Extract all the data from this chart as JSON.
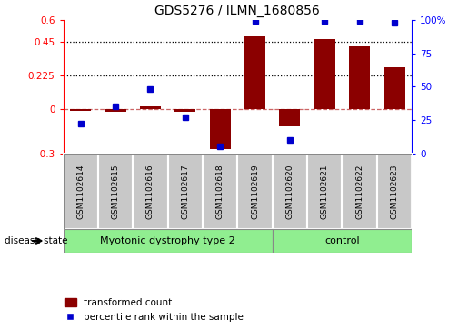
{
  "title": "GDS5276 / ILMN_1680856",
  "samples": [
    "GSM1102614",
    "GSM1102615",
    "GSM1102616",
    "GSM1102617",
    "GSM1102618",
    "GSM1102619",
    "GSM1102620",
    "GSM1102621",
    "GSM1102622",
    "GSM1102623"
  ],
  "red_values": [
    -0.012,
    -0.02,
    0.02,
    -0.02,
    -0.27,
    0.49,
    -0.12,
    0.47,
    0.42,
    0.28
  ],
  "blue_values": [
    22,
    35,
    48,
    27,
    5,
    99,
    10,
    99,
    99,
    98
  ],
  "ylim_left": [
    -0.3,
    0.6
  ],
  "ylim_right": [
    0,
    100
  ],
  "yticks_left": [
    -0.3,
    0.0,
    0.225,
    0.45,
    0.6
  ],
  "yticks_right": [
    0,
    25,
    50,
    75,
    100
  ],
  "dotted_lines": [
    0.225,
    0.45
  ],
  "group1_label": "Myotonic dystrophy type 2",
  "group2_label": "control",
  "group1_indices": [
    0,
    1,
    2,
    3,
    4,
    5
  ],
  "group2_indices": [
    6,
    7,
    8,
    9
  ],
  "disease_state_label": "disease state",
  "legend_red": "transformed count",
  "legend_blue": "percentile rank within the sample",
  "bar_color": "#8B0000",
  "blue_color": "#0000CD",
  "zero_line_color": "#CC6666",
  "group1_bg": "#90EE90",
  "group2_bg": "#90EE90",
  "sample_bg": "#C8C8C8"
}
